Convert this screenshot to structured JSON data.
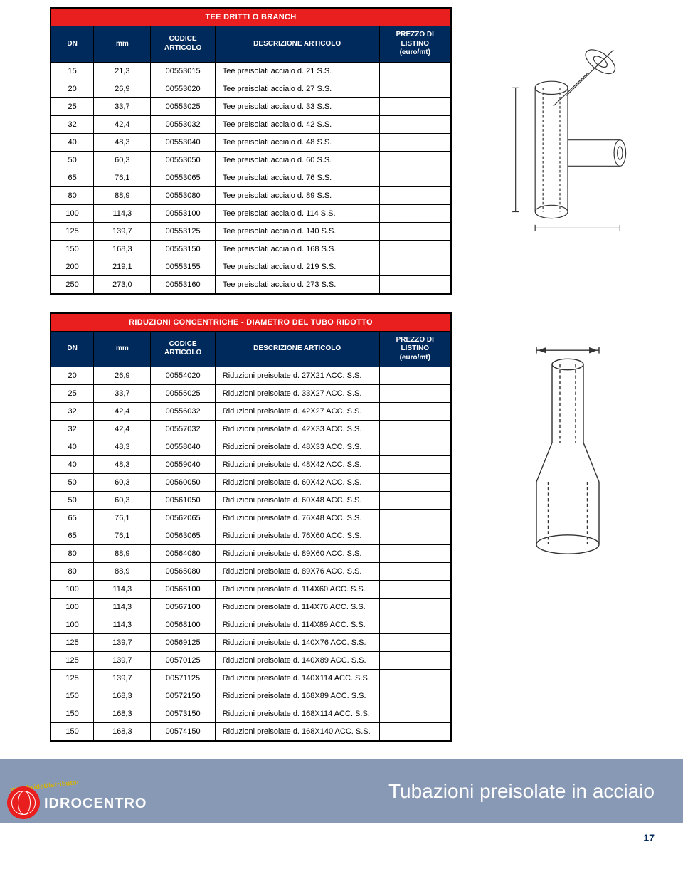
{
  "colors": {
    "header_red": "#e91e1e",
    "header_blue": "#002a5c",
    "footer_band": "#8899b5",
    "border": "#000000",
    "diagram_stroke": "#333333",
    "logo_yellow": "#d8b400"
  },
  "table1": {
    "title": "TEE DRITTI O BRANCH",
    "columns": [
      "DN",
      "mm",
      "CODICE\nARTICOLO",
      "DESCRIZIONE ARTICOLO",
      "PREZZO DI LISTINO\n(euro/mt)"
    ],
    "rows": [
      [
        "15",
        "21,3",
        "00553015",
        "Tee preisolati acciaio d. 21 S.S.",
        ""
      ],
      [
        "20",
        "26,9",
        "00553020",
        "Tee preisolati acciaio d. 27 S.S.",
        ""
      ],
      [
        "25",
        "33,7",
        "00553025",
        "Tee preisolati acciaio d. 33 S.S.",
        ""
      ],
      [
        "32",
        "42,4",
        "00553032",
        "Tee preisolati acciaio d. 42 S.S.",
        ""
      ],
      [
        "40",
        "48,3",
        "00553040",
        "Tee preisolati acciaio d. 48 S.S.",
        ""
      ],
      [
        "50",
        "60,3",
        "00553050",
        "Tee preisolati acciaio d. 60 S.S.",
        ""
      ],
      [
        "65",
        "76,1",
        "00553065",
        "Tee preisolati acciaio d. 76 S.S.",
        ""
      ],
      [
        "80",
        "88,9",
        "00553080",
        "Tee preisolati acciaio d. 89 S.S.",
        ""
      ],
      [
        "100",
        "114,3",
        "00553100",
        "Tee preisolati acciaio d. 114 S.S.",
        ""
      ],
      [
        "125",
        "139,7",
        "00553125",
        "Tee preisolati acciaio d. 140 S.S.",
        ""
      ],
      [
        "150",
        "168,3",
        "00553150",
        "Tee preisolati acciaio d. 168 S.S.",
        ""
      ],
      [
        "200",
        "219,1",
        "00553155",
        "Tee preisolati acciaio d. 219 S.S.",
        ""
      ],
      [
        "250",
        "273,0",
        "00553160",
        "Tee preisolati acciaio d. 273 S.S.",
        ""
      ]
    ]
  },
  "table2": {
    "title": "RIDUZIONI CONCENTRICHE - DIAMETRO DEL TUBO RIDOTTO",
    "columns": [
      "DN",
      "mm",
      "CODICE\nARTICOLO",
      "DESCRIZIONE ARTICOLO",
      "PREZZO DI LISTINO\n(euro/mt)"
    ],
    "rows": [
      [
        "20",
        "26,9",
        "00554020",
        "Riduzioni preisolate d. 27X21 ACC. S.S.",
        ""
      ],
      [
        "25",
        "33,7",
        "00555025",
        "Riduzioni preisolate d. 33X27 ACC. S.S.",
        ""
      ],
      [
        "32",
        "42,4",
        "00556032",
        "Riduzioni preisolate d. 42X27 ACC. S.S.",
        ""
      ],
      [
        "32",
        "42,4",
        "00557032",
        "Riduzioni preisolate d. 42X33 ACC. S.S.",
        ""
      ],
      [
        "40",
        "48,3",
        "00558040",
        "Riduzioni preisolate d. 48X33 ACC. S.S.",
        ""
      ],
      [
        "40",
        "48,3",
        "00559040",
        "Riduzioni preisolate d. 48X42 ACC. S.S.",
        ""
      ],
      [
        "50",
        "60,3",
        "00560050",
        "Riduzioni preisolate d. 60X42 ACC. S.S.",
        ""
      ],
      [
        "50",
        "60,3",
        "00561050",
        "Riduzioni preisolate d. 60X48 ACC. S.S.",
        ""
      ],
      [
        "65",
        "76,1",
        "00562065",
        "Riduzioni preisolate d. 76X48 ACC. S.S.",
        ""
      ],
      [
        "65",
        "76,1",
        "00563065",
        "Riduzioni preisolate d. 76X60 ACC. S.S.",
        ""
      ],
      [
        "80",
        "88,9",
        "00564080",
        "Riduzioni preisolate d. 89X60 ACC. S.S.",
        ""
      ],
      [
        "80",
        "88,9",
        "00565080",
        "Riduzioni preisolate d. 89X76 ACC. S.S.",
        ""
      ],
      [
        "100",
        "114,3",
        "00566100",
        "Riduzioni preisolate d. 114X60 ACC. S.S.",
        ""
      ],
      [
        "100",
        "114,3",
        "00567100",
        "Riduzioni preisolate d. 114X76 ACC. S.S.",
        ""
      ],
      [
        "100",
        "114,3",
        "00568100",
        "Riduzioni preisolate d. 114X89 ACC. S.S.",
        ""
      ],
      [
        "125",
        "139,7",
        "00569125",
        "Riduzioni preisolate d. 140X76 ACC. S.S.",
        ""
      ],
      [
        "125",
        "139,7",
        "00570125",
        "Riduzioni preisolate d. 140X89 ACC. S.S.",
        ""
      ],
      [
        "125",
        "139,7",
        "00571125",
        "Riduzioni preisolate d. 140X114 ACC. S.S.",
        ""
      ],
      [
        "150",
        "168,3",
        "00572150",
        "Riduzioni preisolate d. 168X89 ACC. S.S.",
        ""
      ],
      [
        "150",
        "168,3",
        "00573150",
        "Riduzioni preisolate d. 168X114 ACC. S.S.",
        ""
      ],
      [
        "150",
        "168,3",
        "00574150",
        "Riduzioni preisolate d. 168X140 ACC. S.S.",
        ""
      ]
    ]
  },
  "footer": {
    "title": "Tubazioni preisolate in acciaio",
    "logo_arc": "worldwideDistributor",
    "logo_text": "IDROCENTRO"
  },
  "page_number": "17"
}
